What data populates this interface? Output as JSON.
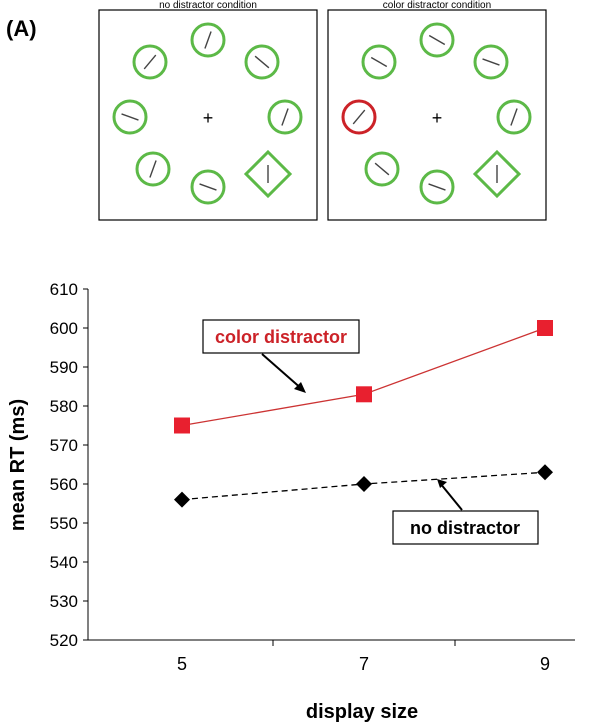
{
  "panel_label": "(A)",
  "displays": [
    {
      "caption": "no distractor condition",
      "items": [
        {
          "shape": "circle",
          "color": "#5cb947",
          "line_angle": 20
        },
        {
          "shape": "circle",
          "color": "#5cb947",
          "line_angle": -50
        },
        {
          "shape": "circle",
          "color": "#5cb947",
          "line_angle": 20
        },
        {
          "shape": "diamond",
          "color": "#5cb947",
          "line_angle": 0
        },
        {
          "shape": "circle",
          "color": "#5cb947",
          "line_angle": -70
        },
        {
          "shape": "circle",
          "color": "#5cb947",
          "line_angle": 20
        },
        {
          "shape": "circle",
          "color": "#5cb947",
          "line_angle": -70
        },
        {
          "shape": "circle",
          "color": "#5cb947",
          "line_angle": 40
        }
      ],
      "fixation": "+"
    },
    {
      "caption": "color distractor condition",
      "items": [
        {
          "shape": "circle",
          "color": "#5cb947",
          "line_angle": -60
        },
        {
          "shape": "circle",
          "color": "#5cb947",
          "line_angle": -70
        },
        {
          "shape": "circle",
          "color": "#5cb947",
          "line_angle": 20
        },
        {
          "shape": "diamond",
          "color": "#5cb947",
          "line_angle": 0
        },
        {
          "shape": "circle",
          "color": "#5cb947",
          "line_angle": -70
        },
        {
          "shape": "circle",
          "color": "#5cb947",
          "line_angle": -50
        },
        {
          "shape": "circle",
          "color": "#cc2228",
          "line_angle": 40
        },
        {
          "shape": "circle",
          "color": "#5cb947",
          "line_angle": -60
        }
      ],
      "fixation": "+"
    }
  ],
  "chart_data": {
    "type": "line",
    "title": "",
    "xlabel": "display size",
    "ylabel": "mean RT (ms)",
    "categories": [
      "5",
      "7",
      "9"
    ],
    "ylim": [
      520,
      610
    ],
    "yticks": [
      520,
      530,
      540,
      550,
      560,
      570,
      580,
      590,
      600,
      610
    ],
    "grid": false,
    "series": [
      {
        "name": "color distractor",
        "values": [
          575,
          583,
          600
        ],
        "color": "#e8202f",
        "line_color": "#cc3333",
        "marker": "square",
        "line_style": "solid"
      },
      {
        "name": "no distractor",
        "values": [
          556,
          560,
          563
        ],
        "color": "#000000",
        "line_color": "#000000",
        "marker": "diamond",
        "line_style": "dashed"
      }
    ]
  }
}
